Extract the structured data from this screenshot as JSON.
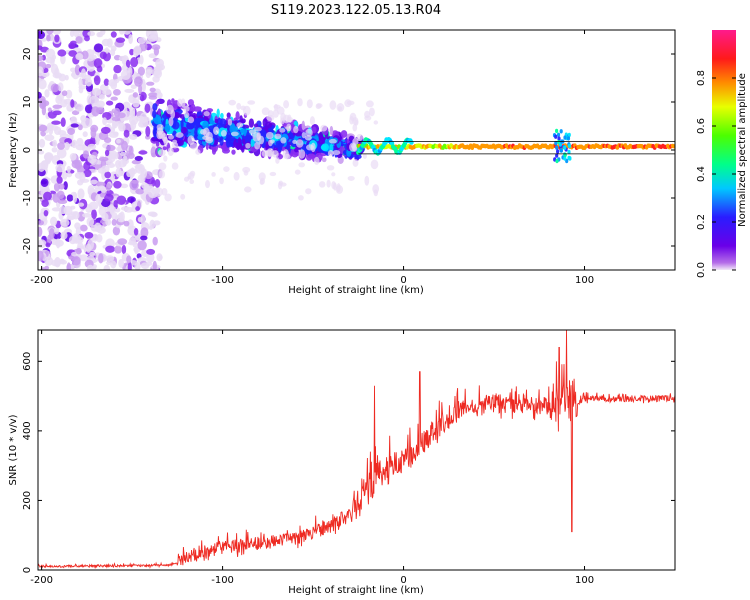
{
  "title": "S119.2023.122.05.13.R04",
  "colors": {
    "snr_line": "#ee2a22",
    "band_edge": "#000000"
  },
  "chart_data": [
    {
      "type": "heatmap",
      "title": "S119.2023.122.05.13.R04",
      "xlabel": "Height of straight line (km)",
      "ylabel": "Frequency (Hz)",
      "xlim": [
        -202,
        150
      ],
      "ylim": [
        -25,
        25
      ],
      "x_ticks": [
        -200,
        -100,
        0,
        100
      ],
      "y_ticks": [
        20,
        10,
        0,
        -10,
        -20
      ],
      "colorbar": {
        "label": "Normalized spectral amplitude",
        "range": [
          0,
          1
        ],
        "ticks": [
          0.0,
          0.2,
          0.4,
          0.6,
          0.8
        ],
        "colormap": "hsv-rainbow (violet-blue-cyan-green-yellow-red-magenta)"
      },
      "band_lines_hz": [
        -0.8,
        1.8
      ],
      "regions": [
        {
          "x_range": [
            -200,
            -135
          ],
          "freq_range": [
            -25,
            25
          ],
          "amplitude": "low, scattered noise"
        },
        {
          "x_range": [
            -135,
            -25
          ],
          "freq_spread_hz": [
            -6,
            9
          ],
          "amplitude": "0.2-0.5, converging toward 0 Hz"
        },
        {
          "x_range": [
            -25,
            150
          ],
          "freq_hz": 0.7,
          "amplitude": "0.6-0.9 narrow tone"
        }
      ]
    },
    {
      "type": "line",
      "xlabel": "Height of straight line (km)",
      "ylabel": "SNR (10 * v/v)",
      "xlim": [
        -202,
        150
      ],
      "ylim": [
        0,
        690
      ],
      "x_ticks": [
        -200,
        -100,
        0,
        100
      ],
      "y_ticks": [
        0,
        200,
        400,
        600
      ],
      "envelope": {
        "x": [
          -200,
          -130,
          -120,
          -100,
          -80,
          -60,
          -40,
          -25,
          -15,
          0,
          15,
          30,
          50,
          70,
          85,
          92,
          100,
          150
        ],
        "y": [
          10,
          12,
          30,
          60,
          70,
          85,
          120,
          180,
          250,
          300,
          380,
          450,
          470,
          470,
          460,
          470,
          490,
          490
        ]
      },
      "spikes": [
        {
          "x": -16,
          "y": 530
        },
        {
          "x": 9,
          "y": 570
        },
        {
          "x": 86,
          "y": 640
        },
        {
          "x": 90,
          "y": 690
        },
        {
          "x": 93,
          "y": 110
        }
      ]
    }
  ]
}
